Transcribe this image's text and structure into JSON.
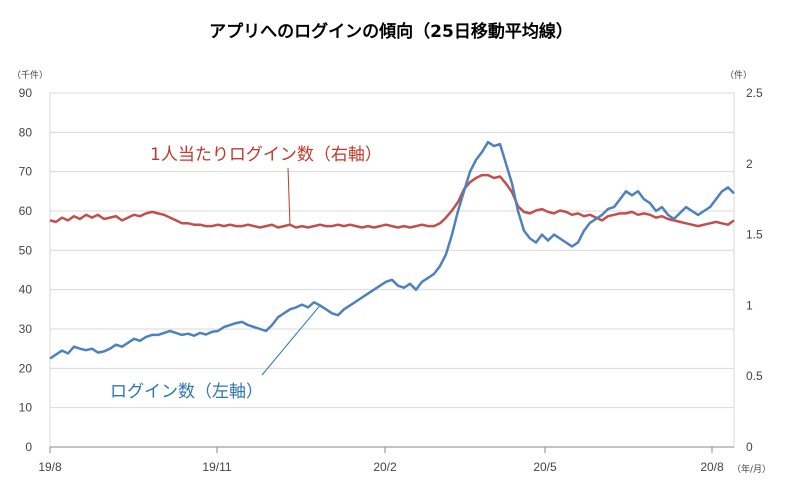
{
  "chart_data": {
    "type": "line",
    "title": "アプリへのログインの傾向（25日移動平均線）",
    "y_left": {
      "unit_label": "（千件）",
      "range": [
        0,
        90
      ],
      "ticks": [
        "0",
        "10",
        "20",
        "30",
        "40",
        "50",
        "60",
        "70",
        "80",
        "90"
      ]
    },
    "y_right": {
      "unit_label": "（件）",
      "range": [
        0,
        2.5
      ],
      "ticks": [
        "0",
        "0.5",
        "1",
        "1.5",
        "2",
        "2.5"
      ]
    },
    "x": {
      "unit_label": "（年/月）",
      "ticks": [
        "19/8",
        "19/11",
        "20/2",
        "20/5",
        "20/8"
      ]
    },
    "grid": "horizontal",
    "colors": {
      "logins": "#4f81bd",
      "per_person": "#c0504d",
      "grid": "#d9d9d9",
      "axis": "#888888"
    },
    "series": [
      {
        "name": "ログイン数（左軸）",
        "axis": "left",
        "points": [
          [
            0,
            22.5
          ],
          [
            5,
            23.5
          ],
          [
            10,
            24.5
          ],
          [
            15,
            23.8
          ],
          [
            20,
            25.5
          ],
          [
            25,
            25
          ],
          [
            30,
            24.6
          ],
          [
            35,
            25
          ],
          [
            40,
            24
          ],
          [
            45,
            24.3
          ],
          [
            50,
            25
          ],
          [
            55,
            26
          ],
          [
            60,
            25.5
          ],
          [
            65,
            26.5
          ],
          [
            70,
            27.5
          ],
          [
            75,
            27
          ],
          [
            80,
            28
          ],
          [
            85,
            28.5
          ],
          [
            90,
            28.5
          ],
          [
            95,
            29
          ],
          [
            100,
            29.5
          ],
          [
            105,
            29
          ],
          [
            110,
            28.5
          ],
          [
            115,
            28.8
          ],
          [
            120,
            28.3
          ],
          [
            125,
            29
          ],
          [
            130,
            28.6
          ],
          [
            135,
            29.3
          ],
          [
            140,
            29.5
          ],
          [
            145,
            30.5
          ],
          [
            150,
            31
          ],
          [
            155,
            31.5
          ],
          [
            160,
            31.8
          ],
          [
            165,
            31
          ],
          [
            170,
            30.5
          ],
          [
            175,
            30
          ],
          [
            180,
            29.5
          ],
          [
            185,
            31
          ],
          [
            190,
            33
          ],
          [
            195,
            34
          ],
          [
            200,
            35
          ],
          [
            205,
            35.5
          ],
          [
            210,
            36.2
          ],
          [
            215,
            35.5
          ],
          [
            220,
            36.8
          ],
          [
            225,
            36
          ],
          [
            230,
            35
          ],
          [
            235,
            34
          ],
          [
            240,
            33.5
          ],
          [
            245,
            35
          ],
          [
            250,
            36
          ],
          [
            255,
            37
          ],
          [
            260,
            38
          ],
          [
            265,
            39
          ],
          [
            270,
            40
          ],
          [
            275,
            41
          ],
          [
            280,
            42
          ],
          [
            285,
            42.5
          ],
          [
            290,
            41
          ],
          [
            295,
            40.5
          ],
          [
            300,
            41.5
          ],
          [
            305,
            40
          ],
          [
            310,
            42
          ],
          [
            315,
            43
          ],
          [
            320,
            44
          ],
          [
            325,
            46
          ],
          [
            330,
            49
          ],
          [
            335,
            54
          ],
          [
            340,
            60
          ],
          [
            345,
            65
          ],
          [
            350,
            70
          ],
          [
            355,
            73
          ],
          [
            360,
            75
          ],
          [
            365,
            77.5
          ],
          [
            370,
            76.5
          ],
          [
            375,
            77
          ],
          [
            380,
            72
          ],
          [
            385,
            67
          ],
          [
            390,
            60
          ],
          [
            395,
            55
          ],
          [
            400,
            53
          ],
          [
            405,
            52
          ],
          [
            410,
            54
          ],
          [
            415,
            52.5
          ],
          [
            420,
            54
          ],
          [
            425,
            53
          ],
          [
            430,
            52
          ],
          [
            435,
            51
          ],
          [
            440,
            52
          ],
          [
            445,
            55
          ],
          [
            450,
            57
          ],
          [
            455,
            58
          ],
          [
            460,
            59
          ],
          [
            465,
            60.5
          ],
          [
            470,
            61
          ],
          [
            475,
            63
          ],
          [
            480,
            65
          ],
          [
            485,
            64
          ],
          [
            490,
            65
          ],
          [
            495,
            63
          ],
          [
            500,
            62
          ],
          [
            505,
            60
          ],
          [
            510,
            61
          ],
          [
            515,
            59
          ],
          [
            520,
            58
          ],
          [
            525,
            59.5
          ],
          [
            530,
            61
          ],
          [
            535,
            60
          ],
          [
            540,
            59
          ],
          [
            545,
            60
          ],
          [
            550,
            61
          ],
          [
            555,
            63
          ],
          [
            560,
            65
          ],
          [
            565,
            66
          ],
          [
            570,
            64.5
          ]
        ]
      },
      {
        "name": "1人当たりログイン数（右軸）",
        "axis": "right",
        "points": [
          [
            0,
            1.6
          ],
          [
            5,
            1.59
          ],
          [
            10,
            1.62
          ],
          [
            15,
            1.6
          ],
          [
            20,
            1.63
          ],
          [
            25,
            1.61
          ],
          [
            30,
            1.64
          ],
          [
            35,
            1.62
          ],
          [
            40,
            1.64
          ],
          [
            45,
            1.61
          ],
          [
            50,
            1.62
          ],
          [
            55,
            1.63
          ],
          [
            60,
            1.6
          ],
          [
            65,
            1.62
          ],
          [
            70,
            1.64
          ],
          [
            75,
            1.63
          ],
          [
            80,
            1.65
          ],
          [
            85,
            1.66
          ],
          [
            90,
            1.65
          ],
          [
            95,
            1.64
          ],
          [
            100,
            1.62
          ],
          [
            105,
            1.6
          ],
          [
            110,
            1.58
          ],
          [
            115,
            1.58
          ],
          [
            120,
            1.57
          ],
          [
            125,
            1.57
          ],
          [
            130,
            1.56
          ],
          [
            135,
            1.56
          ],
          [
            140,
            1.57
          ],
          [
            145,
            1.56
          ],
          [
            150,
            1.57
          ],
          [
            155,
            1.56
          ],
          [
            160,
            1.56
          ],
          [
            165,
            1.57
          ],
          [
            170,
            1.56
          ],
          [
            175,
            1.55
          ],
          [
            180,
            1.56
          ],
          [
            185,
            1.57
          ],
          [
            190,
            1.55
          ],
          [
            195,
            1.56
          ],
          [
            200,
            1.57
          ],
          [
            205,
            1.55
          ],
          [
            210,
            1.56
          ],
          [
            215,
            1.55
          ],
          [
            220,
            1.56
          ],
          [
            225,
            1.57
          ],
          [
            230,
            1.56
          ],
          [
            235,
            1.56
          ],
          [
            240,
            1.57
          ],
          [
            245,
            1.56
          ],
          [
            250,
            1.57
          ],
          [
            255,
            1.56
          ],
          [
            260,
            1.55
          ],
          [
            265,
            1.56
          ],
          [
            270,
            1.55
          ],
          [
            275,
            1.56
          ],
          [
            280,
            1.57
          ],
          [
            285,
            1.56
          ],
          [
            290,
            1.55
          ],
          [
            295,
            1.56
          ],
          [
            300,
            1.55
          ],
          [
            305,
            1.56
          ],
          [
            310,
            1.57
          ],
          [
            315,
            1.56
          ],
          [
            320,
            1.56
          ],
          [
            325,
            1.58
          ],
          [
            330,
            1.62
          ],
          [
            335,
            1.67
          ],
          [
            340,
            1.73
          ],
          [
            345,
            1.82
          ],
          [
            350,
            1.87
          ],
          [
            355,
            1.9
          ],
          [
            360,
            1.92
          ],
          [
            365,
            1.92
          ],
          [
            370,
            1.9
          ],
          [
            375,
            1.91
          ],
          [
            380,
            1.86
          ],
          [
            385,
            1.8
          ],
          [
            390,
            1.7
          ],
          [
            395,
            1.66
          ],
          [
            400,
            1.65
          ],
          [
            405,
            1.67
          ],
          [
            410,
            1.68
          ],
          [
            415,
            1.66
          ],
          [
            420,
            1.65
          ],
          [
            425,
            1.67
          ],
          [
            430,
            1.66
          ],
          [
            435,
            1.64
          ],
          [
            440,
            1.65
          ],
          [
            445,
            1.63
          ],
          [
            450,
            1.64
          ],
          [
            455,
            1.62
          ],
          [
            460,
            1.6
          ],
          [
            465,
            1.63
          ],
          [
            470,
            1.64
          ],
          [
            475,
            1.65
          ],
          [
            480,
            1.65
          ],
          [
            485,
            1.66
          ],
          [
            490,
            1.64
          ],
          [
            495,
            1.65
          ],
          [
            500,
            1.64
          ],
          [
            505,
            1.62
          ],
          [
            510,
            1.63
          ],
          [
            515,
            1.61
          ],
          [
            520,
            1.6
          ],
          [
            525,
            1.59
          ],
          [
            530,
            1.58
          ],
          [
            535,
            1.57
          ],
          [
            540,
            1.56
          ],
          [
            545,
            1.57
          ],
          [
            550,
            1.58
          ],
          [
            555,
            1.59
          ],
          [
            560,
            1.58
          ],
          [
            565,
            1.57
          ],
          [
            570,
            1.6
          ]
        ]
      }
    ],
    "annotations": [
      {
        "text": "1人当たりログイン数（右軸）",
        "series": "per_person",
        "target": [
          200,
          1.56
        ]
      },
      {
        "text": "ログイン数（左軸）",
        "series": "logins",
        "target": [
          225,
          36
        ]
      }
    ]
  }
}
